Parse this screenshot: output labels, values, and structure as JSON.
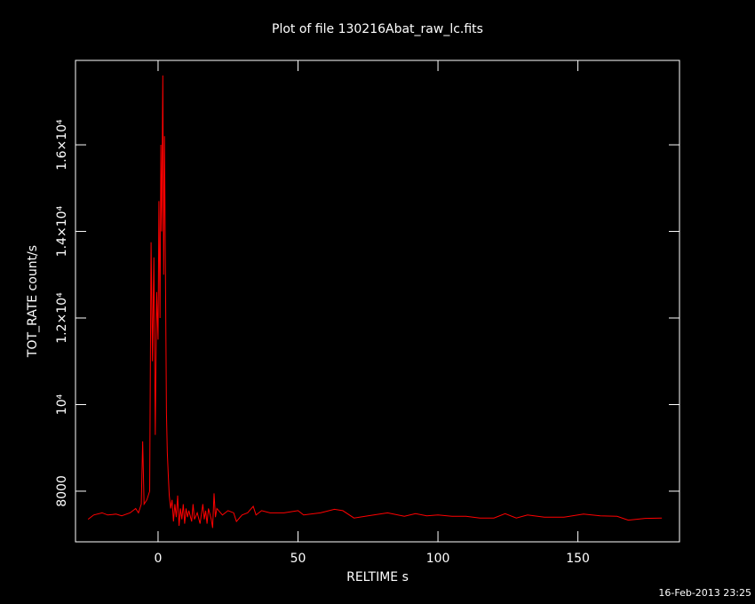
{
  "chart_data": {
    "type": "line",
    "title": "Plot of file 130216Abat_raw_lc.fits",
    "x_label": "RELTIME  s",
    "y_label": "TOT_RATE  count/s",
    "annotation": "16-Feb-2013 23:25",
    "color": "#ff0000",
    "xlim": [
      -29.5,
      186.3
    ],
    "ylim": [
      6830,
      17950
    ],
    "xticks": [
      0,
      50,
      100,
      150
    ],
    "yticks": [
      8000,
      {
        "value": 10000,
        "label": "10⁴"
      },
      {
        "value": 12000,
        "label": "1.2×10⁴"
      },
      {
        "value": 14000,
        "label": "1.4×10⁴"
      },
      {
        "value": 16000,
        "label": "1.6×10⁴"
      }
    ],
    "x": [
      -25,
      -23,
      -20,
      -18,
      -15,
      -13,
      -10,
      -8,
      -7,
      -6,
      -5.5,
      -5,
      -4,
      -3,
      -2.5,
      -2,
      -1.5,
      -1,
      -0.5,
      0,
      0.3,
      0.7,
      1,
      1.3,
      1.7,
      2,
      2.3,
      2.7,
      3,
      3.3,
      3.7,
      4,
      4.5,
      5,
      5.5,
      6,
      6.5,
      7,
      7.5,
      8,
      8.5,
      9,
      9.5,
      10,
      10.5,
      11,
      12,
      12.5,
      13,
      14,
      15,
      16,
      16.5,
      17,
      17.5,
      18,
      19,
      19.5,
      20,
      20.5,
      21,
      23,
      25,
      27,
      28,
      30,
      32,
      34,
      35,
      37,
      40,
      45,
      50,
      52,
      58,
      63,
      66,
      70,
      75,
      82,
      88,
      92,
      96,
      100,
      105,
      110,
      115,
      120,
      124,
      128,
      132,
      138,
      145,
      152,
      158,
      164,
      168,
      174,
      180
    ],
    "series": [
      {
        "name": "TOT_RATE",
        "color": "#ff0000",
        "values": [
          7350,
          7450,
          7500,
          7450,
          7470,
          7430,
          7500,
          7600,
          7500,
          7700,
          9150,
          7700,
          7800,
          8000,
          13750,
          11000,
          13400,
          9300,
          12600,
          11500,
          14700,
          12000,
          16000,
          14000,
          17600,
          13000,
          16200,
          12500,
          9800,
          8900,
          8300,
          7900,
          7600,
          7800,
          7300,
          7700,
          7400,
          7900,
          7200,
          7600,
          7350,
          7700,
          7250,
          7600,
          7400,
          7550,
          7300,
          7700,
          7350,
          7500,
          7250,
          7700,
          7350,
          7550,
          7250,
          7600,
          7350,
          7150,
          7950,
          7400,
          7600,
          7450,
          7550,
          7500,
          7300,
          7450,
          7500,
          7650,
          7450,
          7550,
          7500,
          7500,
          7550,
          7450,
          7500,
          7580,
          7550,
          7380,
          7430,
          7500,
          7420,
          7480,
          7430,
          7450,
          7420,
          7420,
          7380,
          7380,
          7480,
          7380,
          7450,
          7400,
          7400,
          7470,
          7430,
          7420,
          7330,
          7370,
          7380
        ]
      }
    ]
  }
}
